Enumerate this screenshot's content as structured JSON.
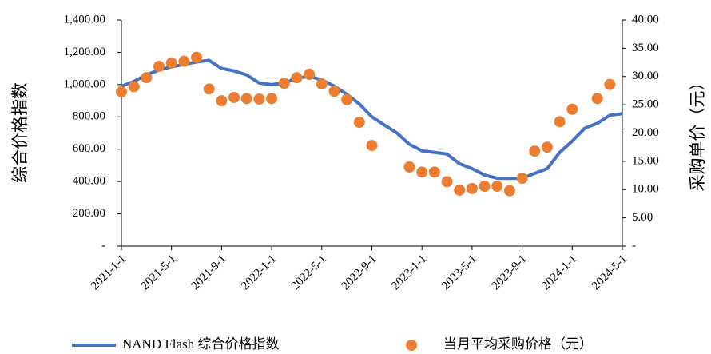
{
  "chart_data": {
    "type": "line-scatter",
    "y_label": "综合价格指数",
    "y2_label": "采购单价（元）",
    "categories": [
      "2021-1-1",
      null,
      null,
      null,
      "2021-5-1",
      null,
      null,
      null,
      "2021-9-1",
      null,
      null,
      null,
      "2022-1-1",
      null,
      null,
      null,
      "2022-5-1",
      null,
      null,
      null,
      "2022-9-1",
      null,
      null,
      null,
      "2023-1-1",
      null,
      null,
      null,
      "2023-5-1",
      null,
      null,
      null,
      "2023-9-1",
      null,
      null,
      null,
      "2024-1-1",
      null,
      null,
      null,
      "2024-5-1"
    ],
    "series": [
      {
        "name": "NAND Flash 综合价格指数",
        "type": "line",
        "color": "#4472c4",
        "values": [
          990,
          1020,
          1060,
          1090,
          1110,
          1125,
          1140,
          1150,
          1100,
          1085,
          1060,
          1010,
          1000,
          1010,
          1040,
          1050,
          1030,
          990,
          940,
          880,
          800,
          750,
          700,
          630,
          590,
          580,
          570,
          510,
          480,
          440,
          420,
          420,
          420,
          450,
          480,
          580,
          650,
          730,
          760,
          810,
          820
        ]
      },
      {
        "name": "当月平均采购价格（元）",
        "type": "scatter",
        "axis": "y2",
        "color": "#ed7d31",
        "values": [
          27.3,
          28.2,
          29.8,
          31.8,
          32.4,
          32.7,
          33.4,
          27.8,
          25.7,
          26.3,
          26.1,
          26.0,
          26.1,
          28.8,
          29.8,
          30.4,
          28.7,
          27.4,
          25.9,
          21.9,
          17.8,
          null,
          null,
          14.0,
          13.1,
          13.1,
          11.4,
          9.9,
          10.2,
          10.6,
          10.6,
          9.8,
          12.0,
          16.8,
          17.5,
          22.0,
          24.2,
          null,
          26.1,
          28.6,
          null
        ]
      }
    ],
    "ylim": [
      0,
      1400
    ],
    "yticks": [
      {
        "value": 0,
        "label": "-"
      },
      {
        "value": 200,
        "label": "200.00"
      },
      {
        "value": 400,
        "label": "400.00"
      },
      {
        "value": 600,
        "label": "600.00"
      },
      {
        "value": 800,
        "label": "800.00"
      },
      {
        "value": 1000,
        "label": "1,000.00"
      },
      {
        "value": 1200,
        "label": "1,200.00"
      },
      {
        "value": 1400,
        "label": "1,400.00"
      }
    ],
    "y2lim": [
      0,
      40
    ],
    "y2ticks": [
      {
        "value": 0,
        "label": "-"
      },
      {
        "value": 5,
        "label": "5.00"
      },
      {
        "value": 10,
        "label": "10.00"
      },
      {
        "value": 15,
        "label": "15.00"
      },
      {
        "value": 20,
        "label": "20.00"
      },
      {
        "value": 25,
        "label": "25.00"
      },
      {
        "value": 30,
        "label": "30.00"
      },
      {
        "value": 35,
        "label": "35.00"
      },
      {
        "value": 40,
        "label": "40.00"
      }
    ],
    "grid": false
  }
}
